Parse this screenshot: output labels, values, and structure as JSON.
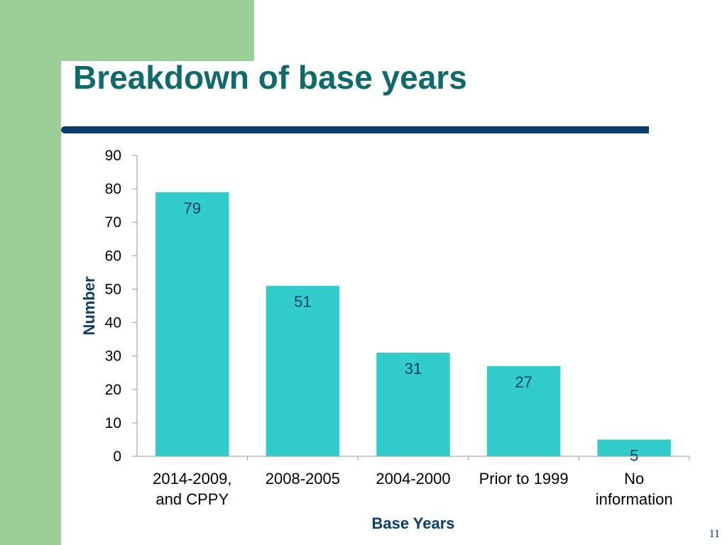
{
  "slide": {
    "title": "Breakdown of base years",
    "page_number": "11"
  },
  "colors": {
    "bar": "#33cccc",
    "title": "#0f6b6b",
    "accent_rule": "#0b3d6b",
    "side_band": "#9ccf97",
    "axis_title": "#0b3d6b"
  },
  "chart_data": {
    "type": "bar",
    "categories": [
      [
        "2014-2009,",
        "and CPPY"
      ],
      [
        "2008-2005"
      ],
      [
        "2004-2000"
      ],
      [
        "Prior to 1999"
      ],
      [
        "No",
        "information"
      ]
    ],
    "values": [
      79,
      51,
      31,
      27,
      5
    ],
    "data_labels": [
      "79",
      "51",
      "31",
      "27",
      "5"
    ],
    "title": "",
    "xlabel": "Base Years",
    "ylabel": "Number",
    "ylim": [
      0,
      90
    ],
    "yticks": [
      0,
      10,
      20,
      30,
      40,
      50,
      60,
      70,
      80,
      90
    ],
    "grid": false,
    "legend": "none"
  }
}
